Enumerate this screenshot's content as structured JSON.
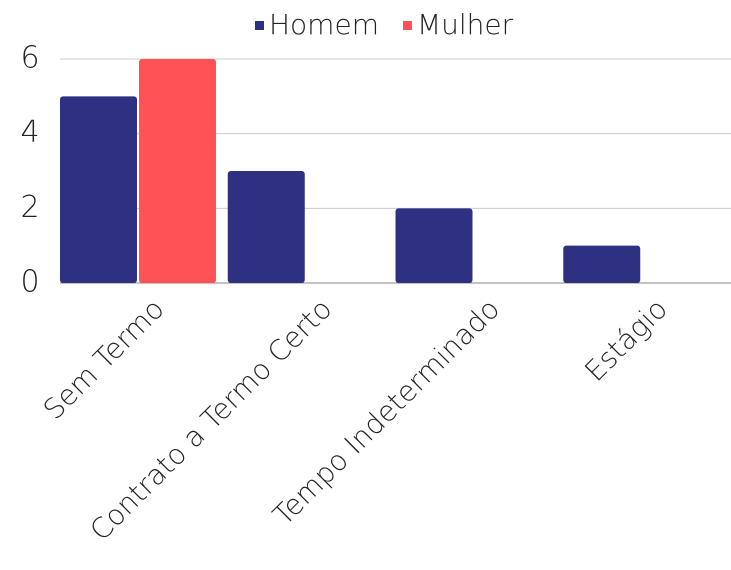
{
  "chart_data": {
    "type": "bar",
    "categories": [
      "Sem Termo",
      "Contrato a Termo Certo",
      "Tempo Indeterminado",
      "Estágio"
    ],
    "series": [
      {
        "name": "Homem",
        "color": "#2e3182",
        "values": [
          5,
          3,
          2,
          1
        ]
      },
      {
        "name": "Mulher",
        "color": "#ff5257",
        "values": [
          6,
          0,
          0,
          0
        ]
      }
    ],
    "ylim": [
      0,
      6
    ],
    "yticks": [
      0,
      2,
      4,
      6
    ],
    "grid": true,
    "legend": "top"
  }
}
